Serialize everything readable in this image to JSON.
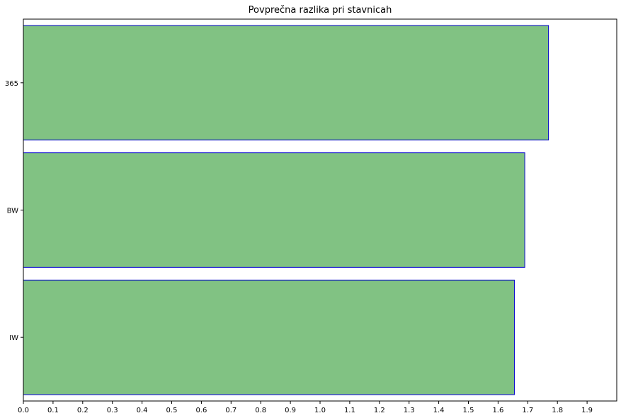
{
  "chart_data": {
    "type": "bar",
    "orientation": "horizontal",
    "title": "Povprečna razlika pri stavnicah",
    "xlabel": "",
    "ylabel": "",
    "categories": [
      "365",
      "BW",
      "IW"
    ],
    "values": [
      1.77,
      1.69,
      1.655
    ],
    "xlim": [
      0,
      2.0
    ],
    "xticks": [
      "0.0",
      "0.1",
      "0.2",
      "0.3",
      "0.4",
      "0.5",
      "0.6",
      "0.7",
      "0.8",
      "0.9",
      "1.0",
      "1.1",
      "1.2",
      "1.3",
      "1.4",
      "1.5",
      "1.6",
      "1.7",
      "1.8",
      "1.9"
    ],
    "grid": false,
    "bar_fill": "#81c283",
    "bar_edge": "#0000cc"
  }
}
